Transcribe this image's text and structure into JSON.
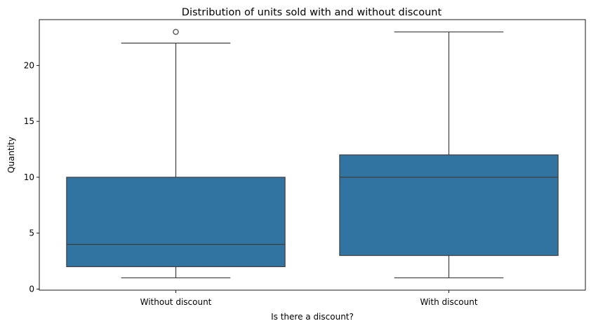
{
  "chart_data": {
    "type": "boxplot",
    "title": "Distribution of units sold with and without discount",
    "xlabel": "Is there a discount?",
    "ylabel": "Quantity",
    "ylim": [
      -0.1,
      24.1
    ],
    "yticks": [
      0,
      5,
      10,
      15,
      20
    ],
    "grid": false,
    "legend": "none",
    "box_color": "#3274a1",
    "line_color": "#3d3d3d",
    "categories": [
      "Without discount",
      "With discount"
    ],
    "boxes": [
      {
        "category": "Without discount",
        "whislo": 1,
        "q1": 2,
        "median": 4,
        "q3": 10,
        "whishi": 22,
        "fliers": [
          23
        ]
      },
      {
        "category": "With discount",
        "whislo": 1,
        "q1": 3,
        "median": 10,
        "q3": 12,
        "whishi": 23,
        "fliers": []
      }
    ]
  }
}
